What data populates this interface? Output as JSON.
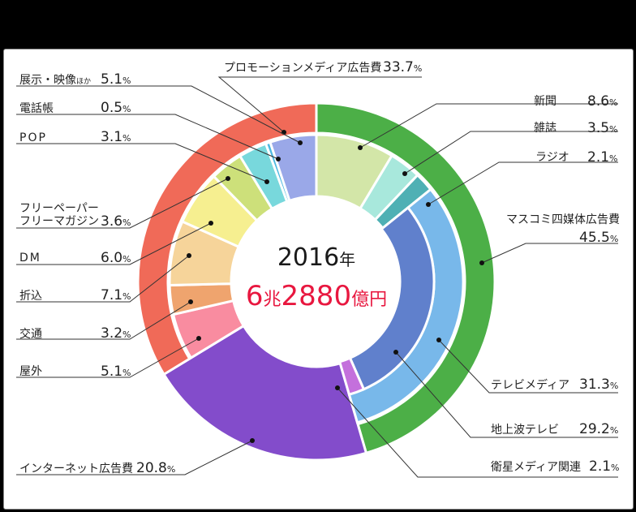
{
  "center": {
    "year": "2016",
    "year_unit": "年",
    "total_a": "6",
    "total_a_unit": "兆",
    "total_b": "2880",
    "total_b_unit": "億円"
  },
  "labels": {
    "promo": {
      "name": "プロモーションメディア広告費",
      "value": "33.7"
    },
    "tenji": {
      "name": "展示・映像",
      "name_small": "ほか",
      "value": "5.1"
    },
    "denwa": {
      "name": "電話帳",
      "value": "0.5"
    },
    "pop": {
      "name": "POP",
      "value": "3.1"
    },
    "free": {
      "name1": "フリーペーパー",
      "name2": "フリーマガジン",
      "value": "3.6"
    },
    "dm": {
      "name": "DM",
      "value": "6.0"
    },
    "orikomi": {
      "name": "折込",
      "value": "7.1"
    },
    "kotsu": {
      "name": "交通",
      "value": "3.2"
    },
    "okugai": {
      "name": "屋外",
      "value": "5.1"
    },
    "internet": {
      "name": "インターネット広告費",
      "value": "20.8"
    },
    "shinbun": {
      "name": "新聞",
      "value": "8.6"
    },
    "zasshi": {
      "name": "雑誌",
      "value": "3.5"
    },
    "radio": {
      "name": "ラジオ",
      "value": "2.1"
    },
    "masukomi": {
      "name": "マスコミ四媒体広告費",
      "value": "45.5"
    },
    "tv": {
      "name": "テレビメディア",
      "value": "31.3"
    },
    "chijoha": {
      "name": "地上波テレビ",
      "value": "29.2"
    },
    "eisei": {
      "name": "衛星メディア関連",
      "value": "2.1"
    },
    "pct": "%"
  },
  "chart_data": {
    "type": "pie",
    "subtype": "multi-level donut (sunburst)",
    "title": "2016年 6兆2880億円",
    "unit": "%",
    "levels": [
      {
        "ring": "outer",
        "segments": [
          {
            "name": "マスコミ四媒体広告費",
            "value": 45.5,
            "color": "#4caf47"
          },
          {
            "name": "インターネット広告費",
            "value": 20.8,
            "color": "#834ccb"
          },
          {
            "name": "プロモーションメディア広告費",
            "value": 33.7,
            "color": "#f06a58"
          }
        ]
      },
      {
        "ring": "middle",
        "segments": [
          {
            "name": "新聞",
            "value": 8.6,
            "parent": "マスコミ四媒体広告費",
            "color": "#d3e6a8"
          },
          {
            "name": "雑誌",
            "value": 3.5,
            "parent": "マスコミ四媒体広告費",
            "color": "#a8e8dc"
          },
          {
            "name": "ラジオ",
            "value": 2.1,
            "parent": "マスコミ四媒体広告費",
            "color": "#4fb0b4"
          },
          {
            "name": "テレビメディア",
            "value": 31.3,
            "parent": "マスコミ四媒体広告費",
            "color": "#78b8ea"
          },
          {
            "name": "インターネット広告費",
            "value": 20.8,
            "color": "#834ccb"
          },
          {
            "name": "屋外",
            "value": 5.1,
            "parent": "プロモーションメディア広告費",
            "color": "#f98ca0"
          },
          {
            "name": "交通",
            "value": 3.2,
            "parent": "プロモーションメディア広告費",
            "color": "#efa46e"
          },
          {
            "name": "折込",
            "value": 7.1,
            "parent": "プロモーションメディア広告費",
            "color": "#f6d49a"
          },
          {
            "name": "DM",
            "value": 6.0,
            "parent": "プロモーションメディア広告費",
            "color": "#f6ef90"
          },
          {
            "name": "フリーペーパー・フリーマガジン",
            "value": 3.6,
            "parent": "プロモーションメディア広告費",
            "color": "#cde07a"
          },
          {
            "name": "POP",
            "value": 3.1,
            "parent": "プロモーションメディア広告費",
            "color": "#78d8dc"
          },
          {
            "name": "電話帳",
            "value": 0.5,
            "parent": "プロモーションメディア広告費",
            "color": "#4cb8e0"
          },
          {
            "name": "展示・映像ほか",
            "value": 5.1,
            "parent": "プロモーションメディア広告費",
            "color": "#9aa8e8"
          }
        ]
      },
      {
        "ring": "inner",
        "segments": [
          {
            "name": "地上波テレビ",
            "value": 29.2,
            "parent": "テレビメディア",
            "color": "#6080cc"
          },
          {
            "name": "衛星メディア関連",
            "value": 2.1,
            "parent": "テレビメディア",
            "color": "#c470dc"
          }
        ]
      }
    ],
    "center_label": {
      "year": "2016年",
      "total": "6兆2880億円"
    }
  }
}
